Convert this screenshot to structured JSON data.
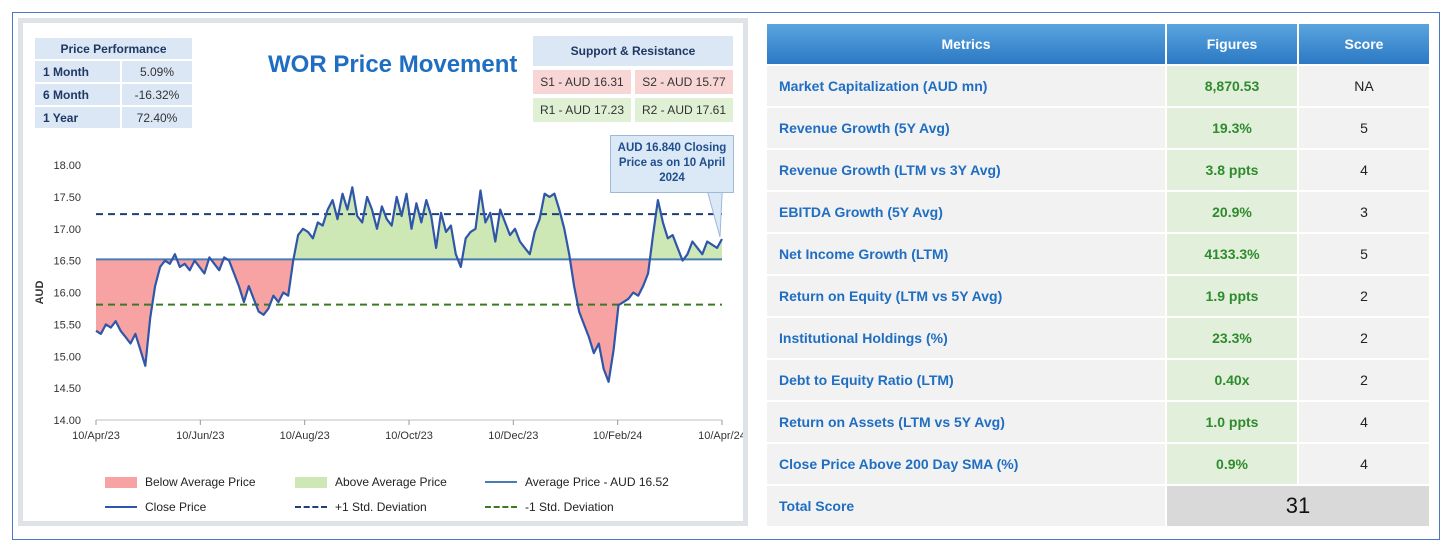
{
  "price_performance": {
    "header": "Price Performance",
    "rows": [
      {
        "label": "1 Month",
        "value": "5.09%"
      },
      {
        "label": "6 Month",
        "value": "-16.32%"
      },
      {
        "label": "1 Year",
        "value": "72.40%"
      }
    ]
  },
  "support_resistance": {
    "header": "Support & Resistance",
    "s1": "S1 - AUD 16.31",
    "s2": "S2 - AUD 15.77",
    "r1": "R1 - AUD 17.23",
    "r2": "R2 - AUD 17.61"
  },
  "callout": {
    "line1": "AUD 16.840 Closing",
    "line2": "Price as on 10 April",
    "line3": "2024"
  },
  "legend": {
    "below": "Below Average Price",
    "above": "Above Average Price",
    "avg": "Average Price - AUD 16.52",
    "close": "Close Price",
    "plus_sd": "+1 Std. Deviation",
    "minus_sd": "-1 Std. Deviation"
  },
  "colors": {
    "close": "#2f56a8",
    "below_fill": "#f7a3a3",
    "above_fill": "#cde8b4",
    "avg_line": "#4a7bb7",
    "plus_sd": "#1f3f7a",
    "minus_sd": "#3a7a23",
    "title": "#1f6ec2"
  },
  "chart_data": {
    "type": "line",
    "title": "WOR Price Movement",
    "ylabel": "AUD",
    "ylim": [
      14.0,
      18.0
    ],
    "yticks": [
      "14.00",
      "14.50",
      "15.00",
      "15.50",
      "16.00",
      "16.50",
      "17.00",
      "17.50",
      "18.00"
    ],
    "xticks": [
      "10/Apr/23",
      "10/Jun/23",
      "10/Aug/23",
      "10/Oct/23",
      "10/Dec/23",
      "10/Feb/24",
      "10/Apr/24"
    ],
    "average": 16.52,
    "plus_sd": 17.23,
    "minus_sd": 15.81,
    "series": [
      {
        "name": "Close Price",
        "values": [
          15.4,
          15.35,
          15.5,
          15.45,
          15.55,
          15.4,
          15.3,
          15.2,
          15.35,
          15.1,
          14.85,
          15.6,
          16.1,
          16.4,
          16.5,
          16.45,
          16.6,
          16.4,
          16.45,
          16.35,
          16.5,
          16.4,
          16.3,
          16.55,
          16.45,
          16.35,
          16.55,
          16.5,
          16.3,
          16.1,
          15.85,
          16.1,
          15.9,
          15.7,
          15.65,
          15.75,
          15.95,
          15.85,
          16.0,
          15.95,
          16.5,
          16.9,
          17.0,
          16.95,
          16.85,
          17.1,
          17.05,
          17.3,
          17.45,
          17.15,
          17.55,
          17.3,
          17.65,
          17.2,
          17.1,
          17.5,
          17.3,
          17.0,
          17.35,
          17.15,
          17.05,
          17.5,
          17.2,
          17.55,
          17.0,
          17.4,
          17.1,
          17.45,
          17.2,
          16.7,
          17.25,
          16.95,
          17.05,
          16.6,
          16.4,
          16.85,
          16.95,
          17.0,
          17.6,
          17.1,
          17.25,
          16.8,
          17.3,
          17.1,
          16.9,
          17.0,
          16.8,
          16.7,
          16.6,
          16.95,
          17.15,
          17.55,
          17.5,
          17.55,
          17.3,
          17.0,
          16.6,
          16.1,
          15.7,
          15.5,
          15.3,
          15.05,
          15.2,
          14.8,
          14.6,
          15.1,
          15.8,
          15.85,
          15.9,
          16.0,
          15.95,
          16.1,
          16.3,
          16.9,
          17.45,
          17.1,
          16.85,
          16.9,
          16.7,
          16.5,
          16.6,
          16.8,
          16.7,
          16.6,
          16.8,
          16.75,
          16.7,
          16.84
        ]
      }
    ]
  },
  "metrics_table": {
    "headers": {
      "metric": "Metrics",
      "figure": "Figures",
      "score": "Score"
    },
    "rows": [
      {
        "metric": "Market Capitalization (AUD mn)",
        "figure": "8,870.53",
        "score": "NA"
      },
      {
        "metric": "Revenue Growth (5Y Avg)",
        "figure": "19.3%",
        "score": "5"
      },
      {
        "metric": "Revenue Growth (LTM vs 3Y Avg)",
        "figure": "3.8 ppts",
        "score": "4"
      },
      {
        "metric": "EBITDA Growth (5Y Avg)",
        "figure": "20.9%",
        "score": "3"
      },
      {
        "metric": "Net Income Growth (LTM)",
        "figure": "4133.3%",
        "score": "5"
      },
      {
        "metric": "Return on Equity (LTM vs 5Y Avg)",
        "figure": "1.9 ppts",
        "score": "2"
      },
      {
        "metric": "Institutional Holdings (%)",
        "figure": "23.3%",
        "score": "2"
      },
      {
        "metric": "Debt to Equity Ratio (LTM)",
        "figure": "0.40x",
        "score": "2"
      },
      {
        "metric": "Return on Assets (LTM vs 5Y Avg)",
        "figure": "1.0 ppts",
        "score": "4"
      },
      {
        "metric": "Close Price Above 200 Day SMA (%)",
        "figure": "0.9%",
        "score": "4"
      }
    ],
    "total_label": "Total Score",
    "total_value": "31"
  }
}
